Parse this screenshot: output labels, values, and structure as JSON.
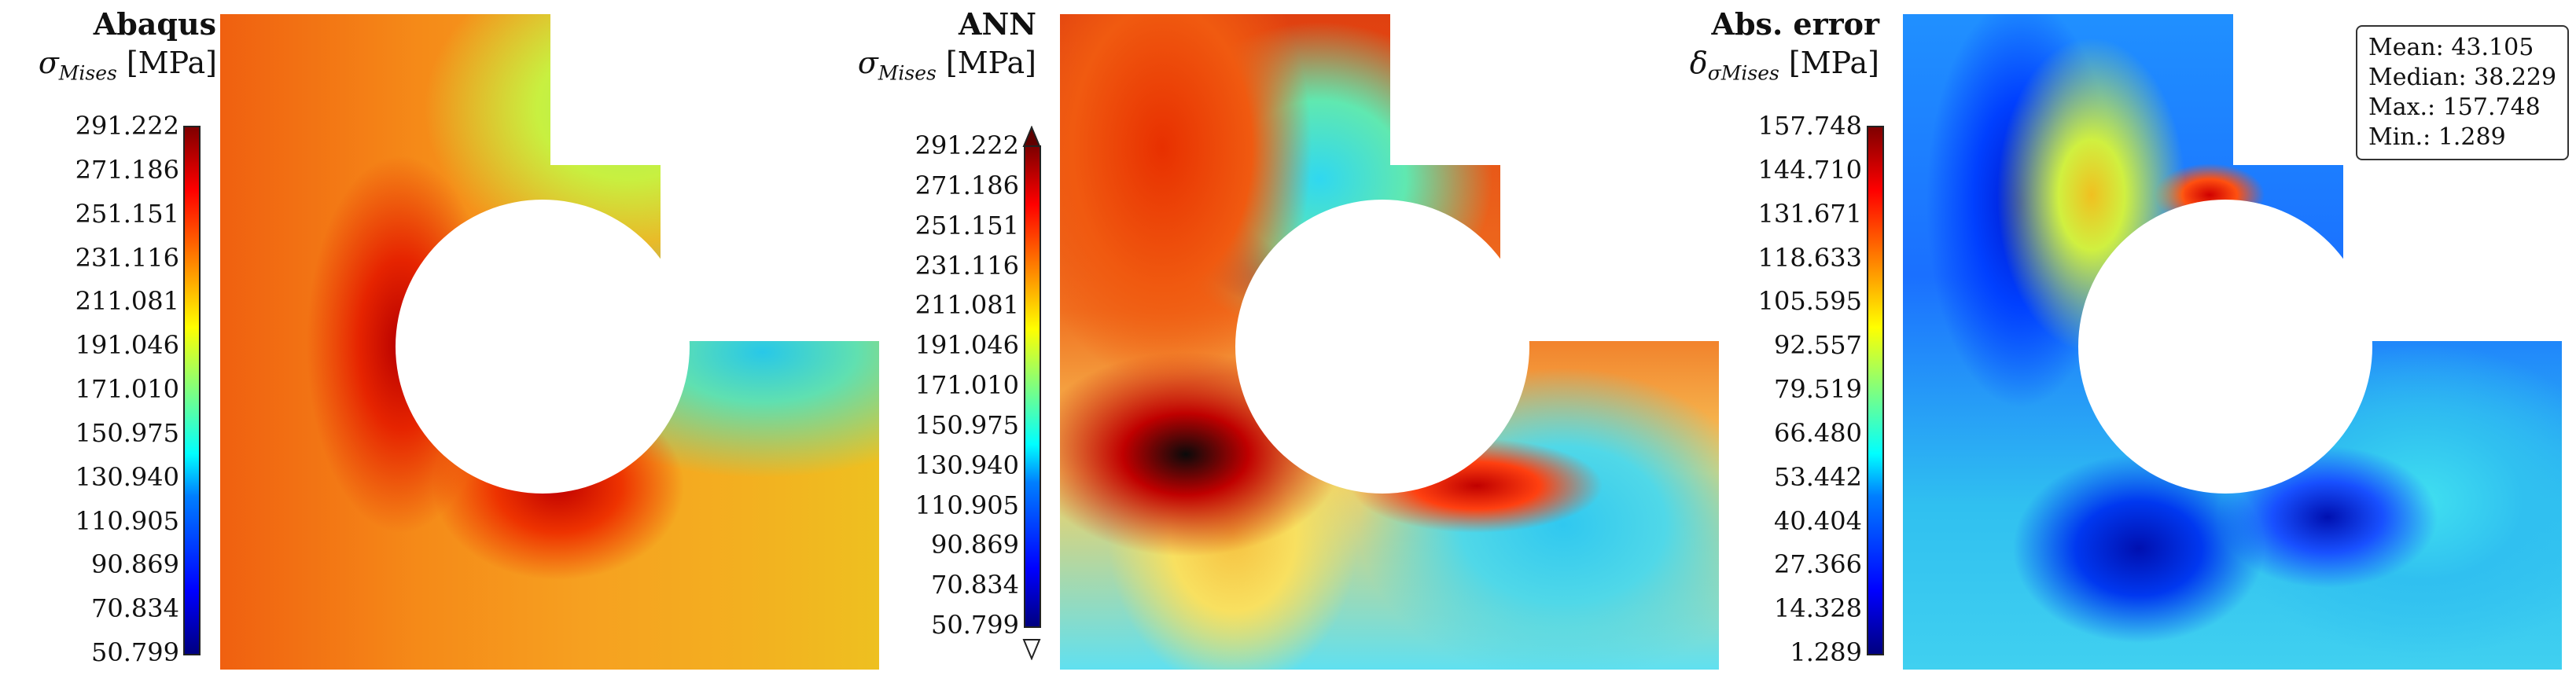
{
  "chart_data": [
    {
      "type": "heatmap",
      "title": "Abaqus",
      "quantity": {
        "symbol": "σ",
        "subscript": "Mises",
        "unit": "[MPa]"
      },
      "colorbar": {
        "colormap": "jet",
        "range": [
          50.799,
          291.222
        ],
        "ticks": [
          "291.222",
          "271.186",
          "251.151",
          "231.116",
          "211.081",
          "191.046",
          "171.010",
          "150.975",
          "130.940",
          "110.905",
          "90.869",
          "70.834",
          "50.799"
        ]
      }
    },
    {
      "type": "heatmap",
      "title": "ANN",
      "quantity": {
        "symbol": "σ",
        "subscript": "Mises",
        "unit": "[MPa]"
      },
      "colorbar": {
        "colormap": "jet",
        "range": [
          50.799,
          291.222
        ],
        "extend": "both",
        "ticks": [
          "291.222",
          "271.186",
          "251.151",
          "231.116",
          "211.081",
          "191.046",
          "171.010",
          "150.975",
          "130.940",
          "110.905",
          "90.869",
          "70.834",
          "50.799"
        ]
      }
    },
    {
      "type": "heatmap",
      "title": "Abs. error",
      "quantity": {
        "symbol": "δ",
        "subscript": "σMises",
        "unit": "[MPa]"
      },
      "colorbar": {
        "colormap": "jet",
        "range": [
          1.289,
          157.748
        ],
        "ticks": [
          "157.748",
          "144.710",
          "131.671",
          "118.633",
          "105.595",
          "92.557",
          "79.519",
          "66.480",
          "53.442",
          "40.404",
          "27.366",
          "14.328",
          "1.289"
        ]
      },
      "statistics": [
        "Mean: 43.105",
        "Median: 38.229",
        "Max.: 157.748",
        "Min.: 1.289"
      ]
    }
  ]
}
